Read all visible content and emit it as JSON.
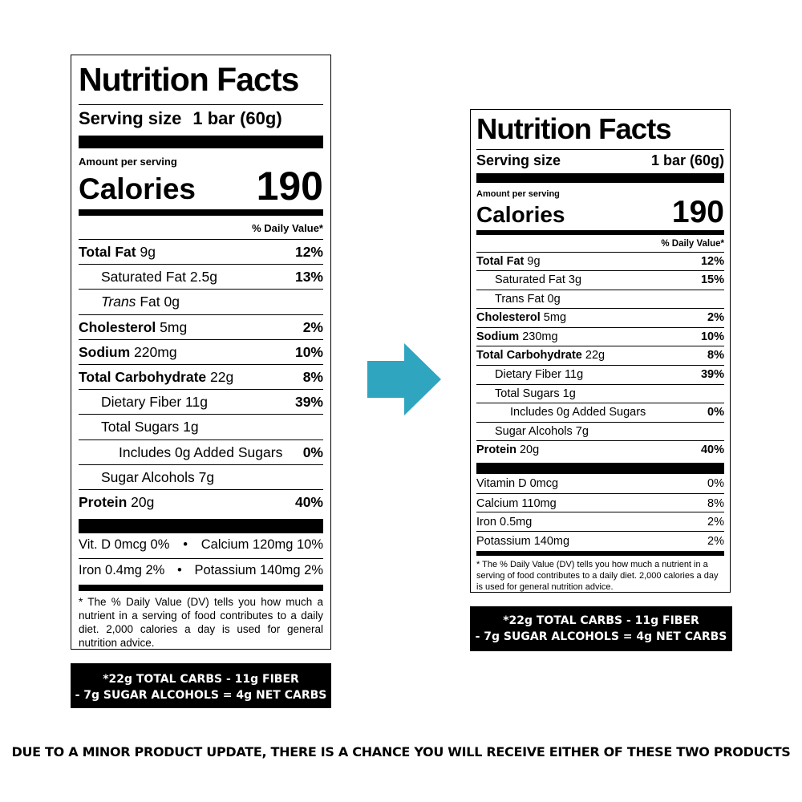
{
  "left": {
    "title": "Nutrition Facts",
    "serving_label": "Serving size",
    "serving_value": "1 bar (60g)",
    "amount_per_serving": "Amount per serving",
    "calories_label": "Calories",
    "calories_value": "190",
    "daily_value_header": "% Daily Value*",
    "nutrients": [
      {
        "name": "Total Fat",
        "amount": "9g",
        "dv": "12%"
      },
      {
        "name": "Saturated Fat",
        "amount": "2.5g",
        "dv": "13%"
      },
      {
        "name_italic": "Trans",
        "name": "Fat",
        "amount": "0g",
        "dv": ""
      },
      {
        "name": "Cholesterol",
        "amount": "5mg",
        "dv": "2%"
      },
      {
        "name": "Sodium",
        "amount": "220mg",
        "dv": "10%"
      },
      {
        "name": "Total Carbohydrate",
        "amount": "22g",
        "dv": "8%"
      },
      {
        "name": "Dietary Fiber",
        "amount": "11g",
        "dv": "39%"
      },
      {
        "name": "Total Sugars",
        "amount": "1g",
        "dv": ""
      },
      {
        "name": "Includes 0g Added Sugars",
        "amount": "",
        "dv": "0%"
      },
      {
        "name": "Sugar Alcohols",
        "amount": "7g",
        "dv": ""
      },
      {
        "name": "Protein",
        "amount": "20g",
        "dv": "40%"
      }
    ],
    "minerals": [
      {
        "a": "Vit. D 0mcg 0%",
        "sep": "•",
        "b": "Calcium 120mg 10%"
      },
      {
        "a": "Iron 0.4mg 2%",
        "sep": "•",
        "b": "Potassium 140mg 2%"
      }
    ],
    "footnote": "* The % Daily Value (DV) tells you how much a nutrient in a serving of food contributes to a daily diet. 2,000 calories a day is used for general nutrition advice.",
    "net_carbs_line1": "*22g TOTAL CARBS - 11g FIBER",
    "net_carbs_line2": "- 7g SUGAR ALCOHOLS = 4g NET CARBS"
  },
  "right": {
    "title": "Nutrition Facts",
    "serving_label": "Serving size",
    "serving_value": "1 bar (60g)",
    "amount_per_serving": "Amount per serving",
    "calories_label": "Calories",
    "calories_value": "190",
    "daily_value_header": "% Daily Value*",
    "nutrients": [
      {
        "name": "Total Fat",
        "amount": "9g",
        "dv": "12%"
      },
      {
        "name": "Saturated Fat",
        "amount": "3g",
        "dv": "15%"
      },
      {
        "name": "Trans Fat",
        "amount": "0g",
        "dv": ""
      },
      {
        "name": "Cholesterol",
        "amount": "5mg",
        "dv": "2%"
      },
      {
        "name": "Sodium",
        "amount": "230mg",
        "dv": "10%"
      },
      {
        "name": "Total Carbohydrate",
        "amount": "22g",
        "dv": "8%"
      },
      {
        "name": "Dietary Fiber",
        "amount": "11g",
        "dv": "39%"
      },
      {
        "name": "Total Sugars",
        "amount": "1g",
        "dv": ""
      },
      {
        "name": "Includes 0g Added Sugars",
        "amount": "",
        "dv": "0%"
      },
      {
        "name": "Sugar Alcohols",
        "amount": "7g",
        "dv": ""
      },
      {
        "name": "Protein",
        "amount": "20g",
        "dv": "40%"
      }
    ],
    "vitamins": [
      {
        "name": "Vitamin D 0mcg",
        "dv": "0%"
      },
      {
        "name": "Calcium 110mg",
        "dv": "8%"
      },
      {
        "name": "Iron 0.5mg",
        "dv": "2%"
      },
      {
        "name": "Potassium 140mg",
        "dv": "2%"
      }
    ],
    "footnote": "* The % Daily Value (DV) tells you how much a nutrient in a serving of food contributes to a daily diet. 2,000 calories a day is used for general nutrition advice.",
    "net_carbs_line1": "*22g TOTAL CARBS - 11g FIBER",
    "net_carbs_line2": "- 7g SUGAR ALCOHOLS = 4g NET CARBS"
  },
  "arrow": {
    "icon": "arrow-right-icon",
    "color": "#2fa5c0"
  },
  "notice": "DUE TO A MINOR PRODUCT UPDATE, THERE IS A CHANCE YOU WILL RECEIVE EITHER OF THESE TWO PRODUCTS"
}
